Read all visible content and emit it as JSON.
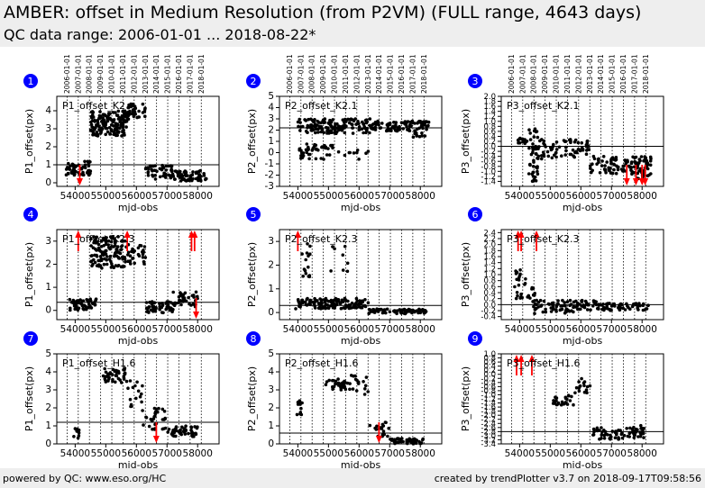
{
  "header": {
    "title": "AMBER: offset in Medium Resolution (from P2VM) (FULL range, 4643 days)",
    "subtitle": "QC data range: 2006-01-01 ... 2018-08-22*"
  },
  "footer": {
    "left": "powered by QC: www.eso.org/HC",
    "right": "created by trendPlotter v3.7 on 2018-09-17T09:58:56"
  },
  "colors": {
    "points": "#000000",
    "outliers": "#ff0000",
    "badge": "#0000ff",
    "header_bg": "#eeeeee"
  },
  "year_labels": [
    "2006-01-01",
    "2007-01-01",
    "2008-01-01",
    "2009-01-01",
    "2010-01-01",
    "2011-01-01",
    "2012-01-01",
    "2013-01-01",
    "2014-01-01",
    "2015-01-01",
    "2016-01-01",
    "2017-01-01",
    "2018-01-01"
  ],
  "chart_data": [
    {
      "id": "1",
      "type": "scatter",
      "label": "P1_offset_K2",
      "xlabel": "mjd-obs",
      "ylabel": "P1_offset(px)",
      "xlim": [
        53400,
        58700
      ],
      "xticks": [
        54000,
        55000,
        56000,
        57000,
        58000
      ],
      "ylim": [
        -0.2,
        4.8
      ],
      "yticks": [
        0,
        1,
        2,
        3,
        4
      ],
      "ref": 1.0,
      "clusters": [
        {
          "x": [
            53700,
            54500
          ],
          "y": [
            0.4,
            1.2
          ],
          "n": 60
        },
        {
          "x": [
            54500,
            55700
          ],
          "y": [
            2.6,
            4.0
          ],
          "n": 160
        },
        {
          "x": [
            55700,
            56300
          ],
          "y": [
            3.5,
            4.4
          ],
          "n": 40
        },
        {
          "x": [
            56300,
            57200
          ],
          "y": [
            0.2,
            1.0
          ],
          "n": 55
        },
        {
          "x": [
            57200,
            58300
          ],
          "y": [
            0.1,
            0.7
          ],
          "n": 65
        }
      ],
      "outliers": [
        {
          "x": 54150,
          "dir": "down"
        }
      ]
    },
    {
      "id": "2",
      "type": "scatter",
      "label": "P2_offset_K2.1",
      "xlabel": "mjd-obs",
      "ylabel": "P2_offset(px)",
      "xlim": [
        53400,
        58700
      ],
      "xticks": [
        54000,
        55000,
        56000,
        57000,
        58000
      ],
      "ylim": [
        -3,
        5
      ],
      "yticks": [
        -3,
        -2,
        -1,
        0,
        1,
        2,
        3,
        4,
        5
      ],
      "ref": 2.2,
      "clusters": [
        {
          "x": [
            54000,
            56500
          ],
          "y": [
            1.7,
            3.0
          ],
          "n": 150
        },
        {
          "x": [
            56500,
            58300
          ],
          "y": [
            1.9,
            2.8
          ],
          "n": 90
        },
        {
          "x": [
            54000,
            55200
          ],
          "y": [
            0.2,
            0.8
          ],
          "n": 25
        },
        {
          "x": [
            54000,
            56300
          ],
          "y": [
            -0.6,
            0.3
          ],
          "n": 30
        },
        {
          "x": [
            57700,
            58200
          ],
          "y": [
            1.3,
            1.8
          ],
          "n": 10
        }
      ],
      "outliers": []
    },
    {
      "id": "3",
      "type": "scatter",
      "label": "P3_offset_K2.1",
      "xlabel": "mjd-obs",
      "ylabel": "P3_offset(px)",
      "xlim": [
        53400,
        58700
      ],
      "xticks": [
        54000,
        55000,
        56000,
        57000,
        58000
      ],
      "ylim": [
        -1.6,
        2.0
      ],
      "yticks": [
        -1.4,
        -1.2,
        -1.0,
        -0.8,
        -0.6,
        -0.4,
        -0.2,
        0.0,
        0.2,
        0.4,
        0.6,
        0.8,
        1.0,
        1.2,
        1.4,
        1.6,
        1.8,
        2.0
      ],
      "ref": 0.0,
      "clusters": [
        {
          "x": [
            53900,
            54300
          ],
          "y": [
            0.1,
            0.35
          ],
          "n": 15
        },
        {
          "x": [
            54300,
            54600
          ],
          "y": [
            -1.4,
            0.7
          ],
          "n": 45
        },
        {
          "x": [
            54600,
            56300
          ],
          "y": [
            -0.5,
            0.3
          ],
          "n": 70
        },
        {
          "x": [
            56300,
            57600
          ],
          "y": [
            -1.1,
            -0.4
          ],
          "n": 60
        },
        {
          "x": [
            57600,
            58300
          ],
          "y": [
            -1.3,
            -0.4
          ],
          "n": 60
        }
      ],
      "outliers": [
        {
          "x": 57500,
          "dir": "down"
        },
        {
          "x": 57800,
          "dir": "down"
        },
        {
          "x": 58000,
          "dir": "down"
        },
        {
          "x": 58100,
          "dir": "down"
        }
      ]
    },
    {
      "id": "4",
      "type": "scatter",
      "label": "P1_offset_K2.3",
      "xlabel": "mjd-obs",
      "ylabel": "P1_offset(px)",
      "xlim": [
        53400,
        58700
      ],
      "xticks": [
        54000,
        55000,
        56000,
        57000,
        58000
      ],
      "ylim": [
        -0.4,
        3.5
      ],
      "yticks": [
        0,
        1,
        2,
        3
      ],
      "ref": 0.35,
      "clusters": [
        {
          "x": [
            53800,
            54700
          ],
          "y": [
            0.0,
            0.5
          ],
          "n": 50
        },
        {
          "x": [
            54500,
            55700
          ],
          "y": [
            1.8,
            3.2
          ],
          "n": 120
        },
        {
          "x": [
            55700,
            56300
          ],
          "y": [
            2.0,
            2.9
          ],
          "n": 30
        },
        {
          "x": [
            56300,
            57200
          ],
          "y": [
            -0.1,
            0.4
          ],
          "n": 50
        },
        {
          "x": [
            57200,
            58000
          ],
          "y": [
            0.1,
            0.8
          ],
          "n": 40
        }
      ],
      "outliers": [
        {
          "x": 54100,
          "dir": "up"
        },
        {
          "x": 55700,
          "dir": "up"
        },
        {
          "x": 57800,
          "dir": "up"
        },
        {
          "x": 57900,
          "dir": "up"
        },
        {
          "x": 57950,
          "dir": "down"
        }
      ]
    },
    {
      "id": "5",
      "type": "scatter",
      "label": "P2_offset_K2.3",
      "xlabel": "mjd-obs",
      "ylabel": "P2_offset(px)",
      "xlim": [
        53400,
        58700
      ],
      "xticks": [
        54000,
        55000,
        56000,
        57000,
        58000
      ],
      "ylim": [
        -0.3,
        3.5
      ],
      "yticks": [
        0,
        1,
        2,
        3
      ],
      "ref": 0.3,
      "clusters": [
        {
          "x": [
            53900,
            56300
          ],
          "y": [
            0.15,
            0.6
          ],
          "n": 130
        },
        {
          "x": [
            54100,
            54400
          ],
          "y": [
            1.5,
            3.0
          ],
          "n": 15
        },
        {
          "x": [
            55000,
            55700
          ],
          "y": [
            1.5,
            2.8
          ],
          "n": 8
        },
        {
          "x": [
            56300,
            58200
          ],
          "y": [
            -0.05,
            0.15
          ],
          "n": 70
        }
      ],
      "outliers": [
        {
          "x": 54000,
          "dir": "up"
        }
      ]
    },
    {
      "id": "6",
      "type": "scatter",
      "label": "P3_offset_K2.3",
      "xlabel": "mjd-obs",
      "ylabel": "P3_offset(px)",
      "xlim": [
        53400,
        58700
      ],
      "xticks": [
        54000,
        55000,
        56000,
        57000,
        58000
      ],
      "ylim": [
        -0.5,
        2.5
      ],
      "yticks": [
        -0.4,
        -0.2,
        0.0,
        0.2,
        0.4,
        0.6,
        0.8,
        1.0,
        1.2,
        1.4,
        1.6,
        1.8,
        2.0,
        2.2,
        2.4
      ],
      "ref": 0.0,
      "clusters": [
        {
          "x": [
            53800,
            54500
          ],
          "y": [
            0.2,
            1.2
          ],
          "n": 30
        },
        {
          "x": [
            54400,
            56500
          ],
          "y": [
            -0.3,
            0.15
          ],
          "n": 90
        },
        {
          "x": [
            56500,
            58200
          ],
          "y": [
            -0.2,
            0.05
          ],
          "n": 60
        }
      ],
      "outliers": [
        {
          "x": 53950,
          "dir": "up"
        },
        {
          "x": 54050,
          "dir": "up"
        },
        {
          "x": 54550,
          "dir": "up"
        }
      ]
    },
    {
      "id": "7",
      "type": "scatter",
      "label": "P1_offset_H1.6",
      "xlabel": "mjd-obs",
      "ylabel": "P1_offset(px)",
      "xlim": [
        53400,
        58700
      ],
      "xticks": [
        54000,
        55000,
        56000,
        57000,
        58000
      ],
      "ylim": [
        0,
        5
      ],
      "yticks": [
        0,
        1,
        2,
        3,
        4,
        5
      ],
      "ref": 1.2,
      "clusters": [
        {
          "x": [
            53950,
            54150
          ],
          "y": [
            0.1,
            0.9
          ],
          "n": 12
        },
        {
          "x": [
            54900,
            55700
          ],
          "y": [
            3.4,
            4.2
          ],
          "n": 40
        },
        {
          "x": [
            55700,
            56200
          ],
          "y": [
            2.0,
            3.6
          ],
          "n": 15
        },
        {
          "x": [
            56200,
            57000
          ],
          "y": [
            0.8,
            2.0
          ],
          "n": 30
        },
        {
          "x": [
            57000,
            58000
          ],
          "y": [
            0.4,
            1.0
          ],
          "n": 45
        }
      ],
      "outliers": [
        {
          "x": 56650,
          "dir": "down"
        }
      ]
    },
    {
      "id": "8",
      "type": "scatter",
      "label": "P2_offset_H1.6",
      "xlabel": "mjd-obs",
      "ylabel": "P2_offset(px)",
      "xlim": [
        53400,
        58700
      ],
      "xticks": [
        54000,
        55000,
        56000,
        57000,
        58000
      ],
      "ylim": [
        0,
        5
      ],
      "yticks": [
        0,
        1,
        2,
        3,
        4,
        5
      ],
      "ref": 0.6,
      "clusters": [
        {
          "x": [
            53950,
            54150
          ],
          "y": [
            1.6,
            2.4
          ],
          "n": 12
        },
        {
          "x": [
            54900,
            55700
          ],
          "y": [
            3.0,
            3.6
          ],
          "n": 30
        },
        {
          "x": [
            55700,
            56300
          ],
          "y": [
            2.6,
            3.9
          ],
          "n": 15
        },
        {
          "x": [
            56300,
            57000
          ],
          "y": [
            0.4,
            1.2
          ],
          "n": 20
        },
        {
          "x": [
            57000,
            58100
          ],
          "y": [
            0.0,
            0.3
          ],
          "n": 45
        }
      ],
      "outliers": [
        {
          "x": 56650,
          "dir": "down"
        }
      ]
    },
    {
      "id": "9",
      "type": "scatter",
      "label": "P3_offset_H1.6",
      "xlabel": "mjd-obs",
      "ylabel": "P3_offset(px)",
      "xlim": [
        53400,
        58700
      ],
      "xticks": [
        54000,
        55000,
        56000,
        57000,
        58000
      ],
      "ylim": [
        -3.4,
        1.0
      ],
      "yticks": [
        -3.4,
        -3.2,
        -3.0,
        -2.8,
        -2.6,
        -2.4,
        -2.2,
        -2.0,
        -1.8,
        -1.6,
        -1.4,
        -1.2,
        -1.0,
        -0.8,
        -0.6,
        -0.4,
        -0.2,
        0.0,
        0.2,
        0.4,
        0.6,
        0.8,
        1.0
      ],
      "ref": -2.8,
      "clusters": [
        {
          "x": [
            55100,
            55800
          ],
          "y": [
            -1.5,
            -1.0
          ],
          "n": 25
        },
        {
          "x": [
            55800,
            56300
          ],
          "y": [
            -1.0,
            -0.2
          ],
          "n": 15
        },
        {
          "x": [
            56400,
            57500
          ],
          "y": [
            -3.2,
            -2.6
          ],
          "n": 40
        },
        {
          "x": [
            57500,
            58100
          ],
          "y": [
            -3.1,
            -2.5
          ],
          "n": 35
        }
      ],
      "outliers": [
        {
          "x": 53900,
          "dir": "up"
        },
        {
          "x": 54050,
          "dir": "up"
        },
        {
          "x": 54400,
          "dir": "up"
        }
      ]
    }
  ]
}
